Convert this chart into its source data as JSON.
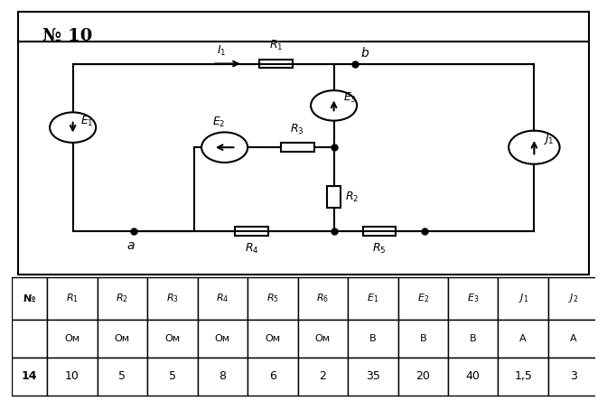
{
  "title": "№ 10",
  "table_headers": [
    "№",
    "R₁",
    "R₂",
    "R₃",
    "R₄",
    "R₅",
    "R₆",
    "E₁",
    "E₂",
    "E₃",
    "J₁",
    "J₂"
  ],
  "table_units": [
    "",
    "Ом",
    "Ом",
    "Ом",
    "Ом",
    "Ом",
    "Ом",
    "В",
    "В",
    "В",
    "А",
    "А"
  ],
  "table_row": [
    "14",
    "10",
    "5",
    "5",
    "8",
    "6",
    "2",
    "35",
    "20",
    "40",
    "1,5",
    "3"
  ],
  "bg_color": "#ffffff",
  "line_color": "#000000"
}
